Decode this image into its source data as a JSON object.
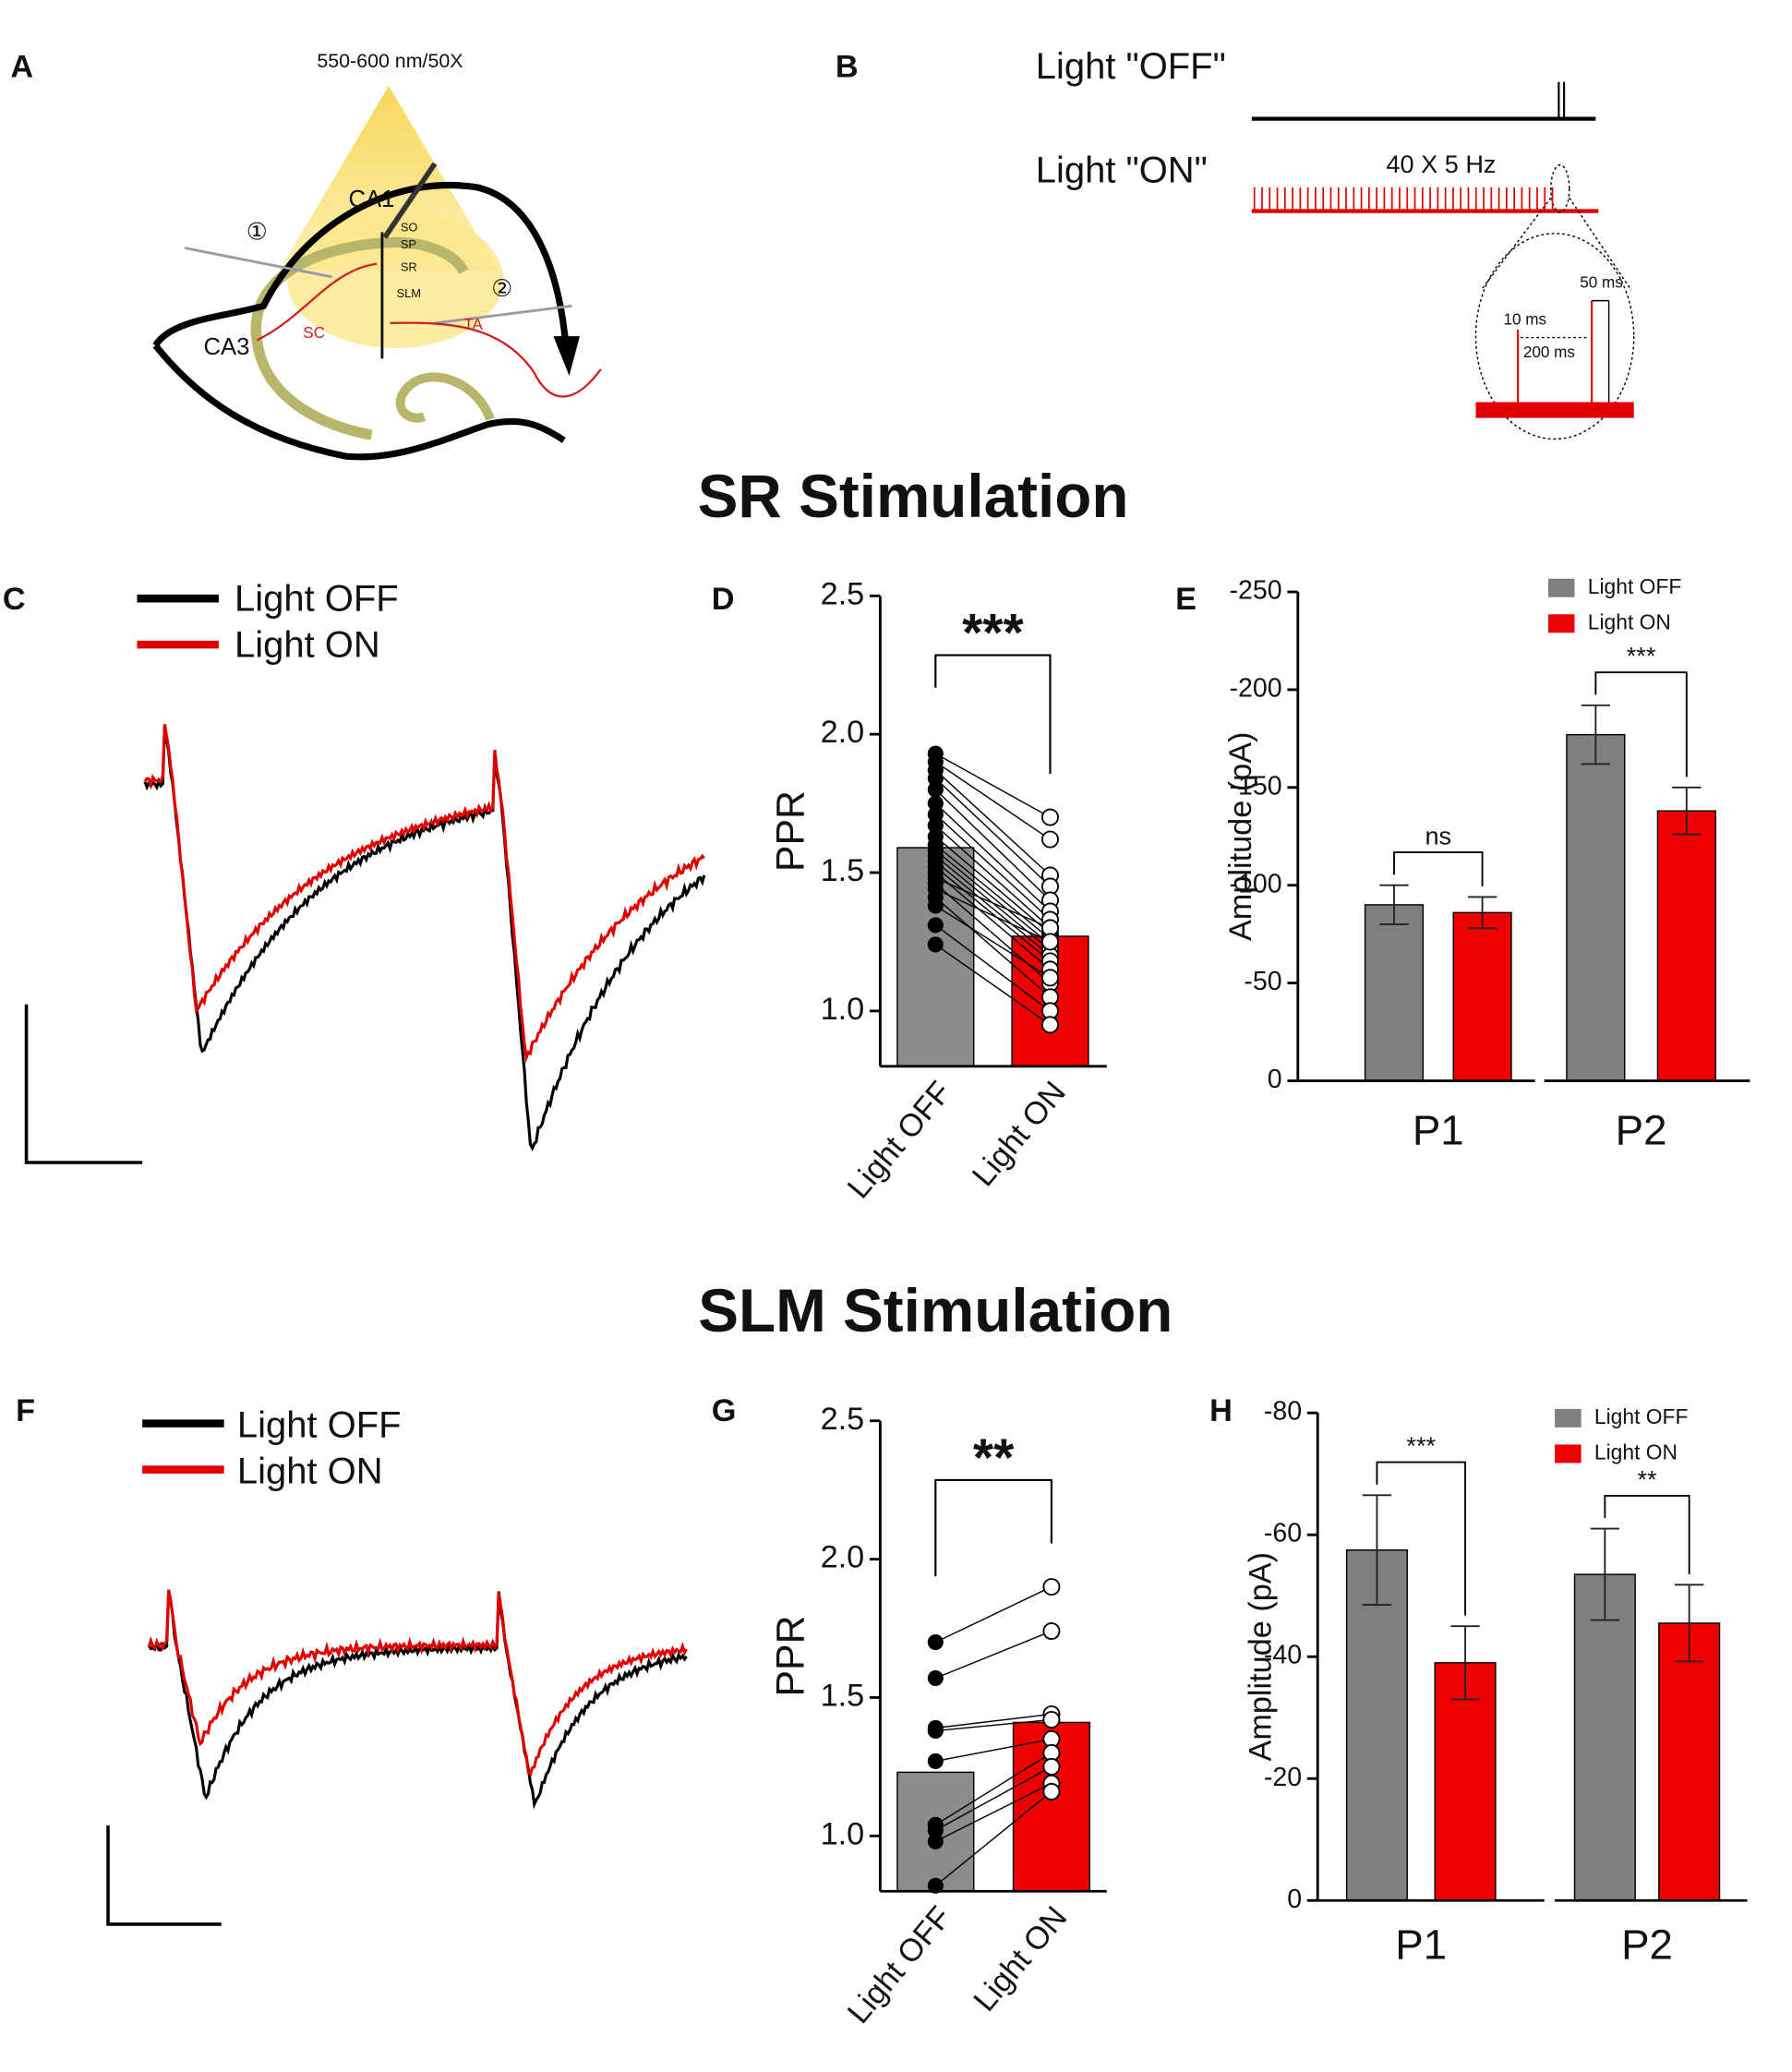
{
  "panel_letters": [
    "A",
    "B",
    "C",
    "D",
    "E",
    "F",
    "G",
    "H"
  ],
  "panel_a": {
    "light": "550-600 nm/50X",
    "labels": [
      "CA1",
      "CA3",
      "SO",
      "SP",
      "SR",
      "SLM",
      "SC",
      "TA",
      "①",
      "②"
    ]
  },
  "panel_b": {
    "off": "Light \"OFF\"",
    "on": "Light \"ON\"",
    "train": "40 X 5 Hz",
    "pulse": "10 ms",
    "interval": "200 ms",
    "gap": "50 ms"
  },
  "headings": [
    "SR Stimulation",
    "SLM Stimulation"
  ],
  "traces": [
    {
      "legend": [
        "Light OFF",
        "Light ON"
      ],
      "colors": [
        "#000000",
        "#e00000"
      ]
    },
    {
      "legend": [
        "Light OFF",
        "Light ON"
      ],
      "colors": [
        "#000000",
        "#e00000"
      ]
    }
  ],
  "chart_data": [
    {
      "type": "paired",
      "ylabel": "PPR",
      "categories": [
        "Light OFF",
        "Light ON"
      ],
      "values": [
        1.59,
        1.27
      ],
      "colors": [
        "#8c8c8c",
        "#ee0000"
      ],
      "points": [
        [
          1.93,
          1.9,
          1.87,
          1.84,
          1.8,
          1.75,
          1.71,
          1.67,
          1.63,
          1.6,
          1.58,
          1.56,
          1.54,
          1.52,
          1.5,
          1.48,
          1.46,
          1.44,
          1.41,
          1.38,
          1.31,
          1.24
        ],
        [
          1.7,
          1.62,
          1.49,
          1.45,
          1.4,
          1.36,
          1.33,
          1.3,
          1.28,
          1.26,
          1.24,
          1.22,
          1.2,
          1.18,
          1.15,
          1.3,
          1.1,
          1.25,
          1.05,
          1.12,
          1.0,
          0.95
        ]
      ],
      "significance": "***",
      "ylim": [
        0.8,
        2.5
      ],
      "yticks": [
        {
          "value": 1,
          "label": "1.0"
        },
        1.5,
        {
          "value": 2,
          "label": "2.0"
        },
        2.5
      ]
    },
    {
      "type": "bar",
      "ylabel": "Amplitude (pA)",
      "categories": [
        "P1",
        "P2"
      ],
      "series": [
        {
          "name": "Light OFF",
          "color": "#7f7f7f",
          "values": [
            -90,
            -177
          ],
          "errors": [
            10,
            15
          ]
        },
        {
          "name": "Light ON",
          "color": "#ee0000",
          "values": [
            -86,
            -138
          ],
          "errors": [
            8,
            12
          ]
        }
      ],
      "significance": [
        "ns",
        "***"
      ],
      "legend": "top-right",
      "ylim": [
        0,
        -250
      ],
      "yticks": [
        0,
        -50,
        -100,
        -150,
        -200,
        -250
      ]
    },
    {
      "type": "paired",
      "ylabel": "PPR",
      "categories": [
        "Light OFF",
        "Light ON"
      ],
      "values": [
        1.23,
        1.41
      ],
      "colors": [
        "#8c8c8c",
        "#ee0000"
      ],
      "points": [
        [
          1.7,
          1.57,
          1.39,
          1.38,
          1.27,
          1.04,
          1.02,
          0.98,
          0.82
        ],
        [
          1.9,
          1.74,
          1.44,
          1.42,
          1.35,
          1.3,
          1.25,
          1.19,
          1.16
        ]
      ],
      "significance": "**",
      "ylim": [
        0.8,
        2.5
      ],
      "yticks": [
        {
          "value": 1,
          "label": "1.0"
        },
        1.5,
        {
          "value": 2,
          "label": "2.0"
        },
        2.5
      ]
    },
    {
      "type": "bar",
      "ylabel": "Amplitude (pA)",
      "categories": [
        "P1",
        "P2"
      ],
      "series": [
        {
          "name": "Light OFF",
          "color": "#7f7f7f",
          "values": [
            -57.5,
            -53.5
          ],
          "errors": [
            9,
            7.5
          ]
        },
        {
          "name": "Light ON",
          "color": "#ee0000",
          "values": [
            -39,
            -45.5
          ],
          "errors": [
            6,
            6.3
          ]
        }
      ],
      "significance": [
        "***",
        "**"
      ],
      "legend": "top-right",
      "ylim": [
        0,
        -80
      ],
      "yticks": [
        0,
        -20,
        -40,
        -60,
        -80
      ]
    }
  ]
}
